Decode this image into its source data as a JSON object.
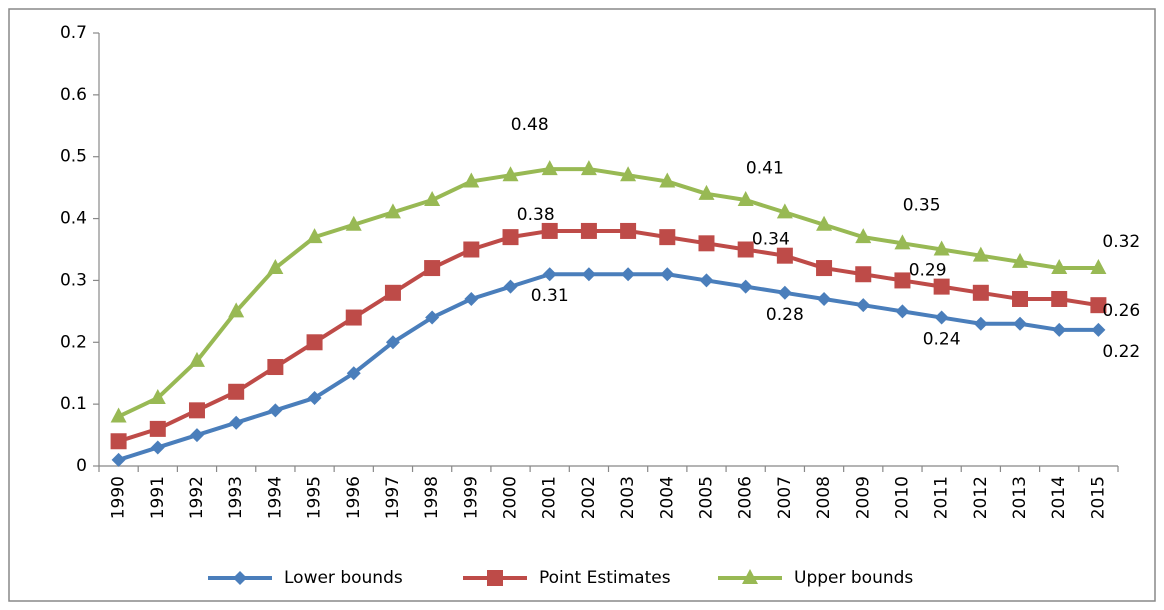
{
  "chart_data": {
    "type": "line",
    "categories": [
      "1990",
      "1991",
      "1992",
      "1993",
      "1994",
      "1995",
      "1996",
      "1997",
      "1998",
      "1999",
      "2000",
      "2001",
      "2002",
      "2003",
      "2004",
      "2005",
      "2006",
      "2007",
      "2008",
      "2009",
      "2010",
      "2011",
      "2012",
      "2013",
      "2014",
      "2015"
    ],
    "series": [
      {
        "name": "Lower bounds",
        "color": "#4a7ebb",
        "marker": "diamond",
        "values": [
          0.01,
          0.03,
          0.05,
          0.07,
          0.09,
          0.11,
          0.15,
          0.2,
          0.24,
          0.27,
          0.29,
          0.31,
          0.31,
          0.31,
          0.31,
          0.3,
          0.29,
          0.28,
          0.27,
          0.26,
          0.25,
          0.24,
          0.23,
          0.23,
          0.22,
          0.22
        ],
        "value_labels": [
          null,
          null,
          null,
          null,
          null,
          null,
          null,
          null,
          null,
          null,
          null,
          "0.31",
          null,
          null,
          null,
          null,
          null,
          "0.28",
          null,
          null,
          null,
          "0.24",
          null,
          null,
          null,
          "0.22"
        ]
      },
      {
        "name": "Point Estimates",
        "color": "#be4b48",
        "marker": "square",
        "values": [
          0.04,
          0.06,
          0.09,
          0.12,
          0.16,
          0.2,
          0.24,
          0.28,
          0.32,
          0.35,
          0.37,
          0.38,
          0.38,
          0.38,
          0.37,
          0.36,
          0.35,
          0.34,
          0.32,
          0.31,
          0.3,
          0.29,
          0.28,
          0.27,
          0.27,
          0.26
        ],
        "value_labels": [
          null,
          null,
          null,
          null,
          null,
          null,
          null,
          null,
          null,
          null,
          null,
          "0.38",
          null,
          null,
          null,
          null,
          null,
          "0.34",
          null,
          null,
          null,
          "0.29",
          null,
          null,
          null,
          "0.26"
        ]
      },
      {
        "name": "Upper bounds",
        "color": "#98b954",
        "marker": "triangle",
        "values": [
          0.08,
          0.11,
          0.17,
          0.25,
          0.32,
          0.37,
          0.39,
          0.41,
          0.43,
          0.46,
          0.47,
          0.48,
          0.48,
          0.47,
          0.46,
          0.44,
          0.43,
          0.41,
          0.39,
          0.37,
          0.36,
          0.35,
          0.34,
          0.33,
          0.32,
          0.32
        ],
        "value_labels": [
          null,
          null,
          null,
          null,
          null,
          null,
          null,
          null,
          null,
          null,
          null,
          "0.48",
          null,
          null,
          null,
          null,
          null,
          "0.41",
          null,
          null,
          null,
          "0.35",
          null,
          null,
          null,
          "0.32"
        ]
      }
    ],
    "ylim": [
      0,
      0.7
    ],
    "yticks": [
      0,
      0.1,
      0.2,
      0.3,
      0.4,
      0.5,
      0.6,
      0.7
    ],
    "grid": false,
    "legend": "bottom"
  }
}
